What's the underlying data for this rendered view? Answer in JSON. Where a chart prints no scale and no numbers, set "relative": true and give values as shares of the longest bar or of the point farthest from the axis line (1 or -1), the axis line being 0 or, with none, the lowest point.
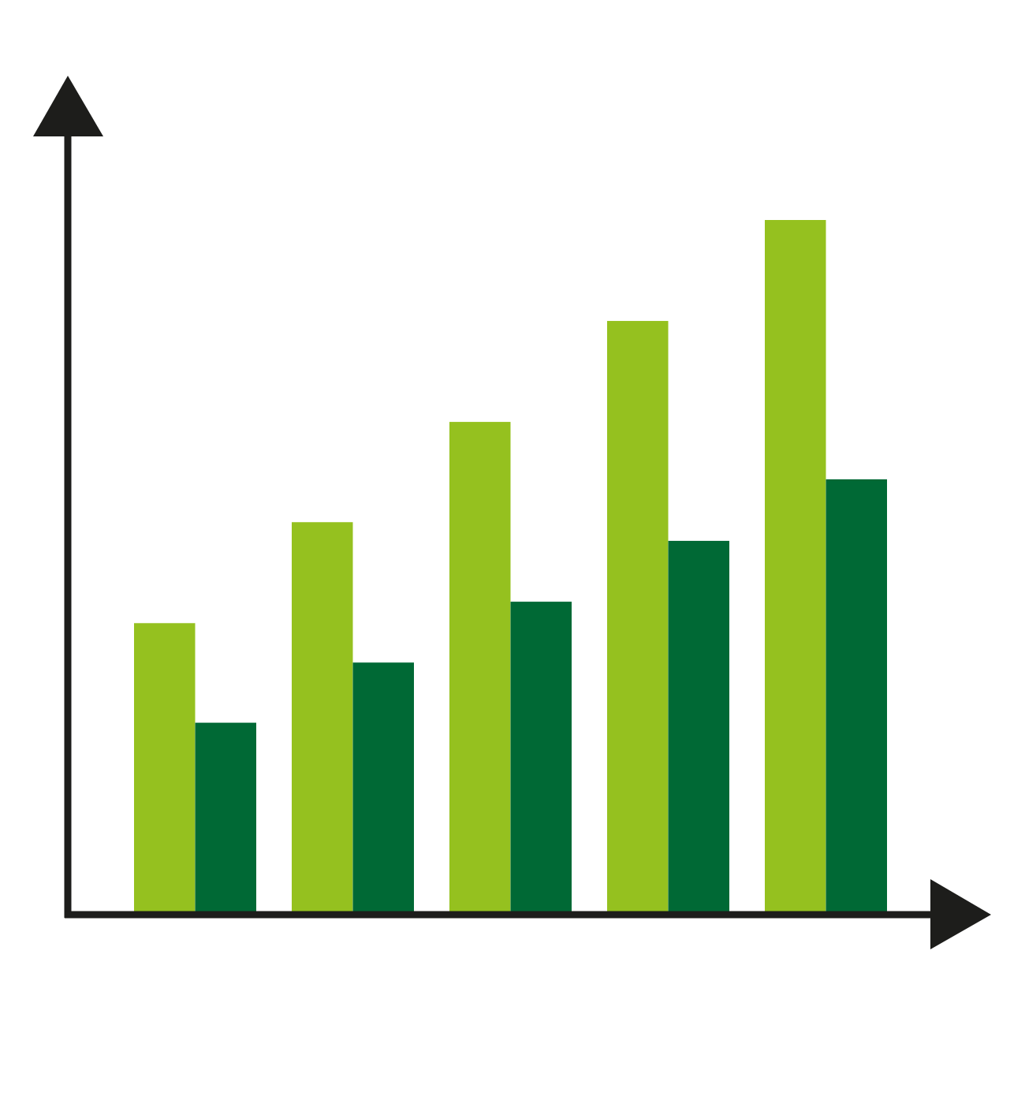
{
  "chart_data": {
    "type": "bar",
    "relative": true,
    "categories": [
      null,
      null,
      null,
      null,
      null
    ],
    "series": [
      {
        "color": "#95c11f",
        "values": [
          0.417,
          0.563,
          0.708,
          0.854,
          1.0
        ]
      },
      {
        "color": "#006935",
        "values": [
          0.273,
          0.36,
          0.448,
          0.536,
          0.625
        ]
      }
    ]
  }
}
